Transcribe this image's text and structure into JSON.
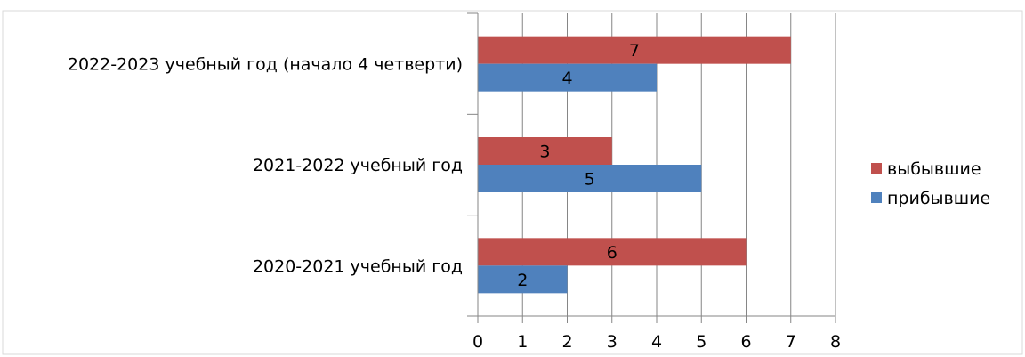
{
  "chart_data": {
    "type": "bar",
    "orientation": "horizontal",
    "categories": [
      "2022-2023 учебный год (начало 4 четверти)",
      "2021-2022 учебный год",
      "2020-2021 учебный год"
    ],
    "series": [
      {
        "name": "выбывшие",
        "color": "#c0504d",
        "values": [
          7,
          3,
          6
        ]
      },
      {
        "name": "прибывшие",
        "color": "#4f81bd",
        "values": [
          4,
          5,
          2
        ]
      }
    ],
    "xlim": [
      0,
      8
    ],
    "xticks": [
      0,
      1,
      2,
      3,
      4,
      5,
      6,
      7,
      8
    ],
    "grid": "vertical",
    "legend_position": "right",
    "data_labels": true
  }
}
